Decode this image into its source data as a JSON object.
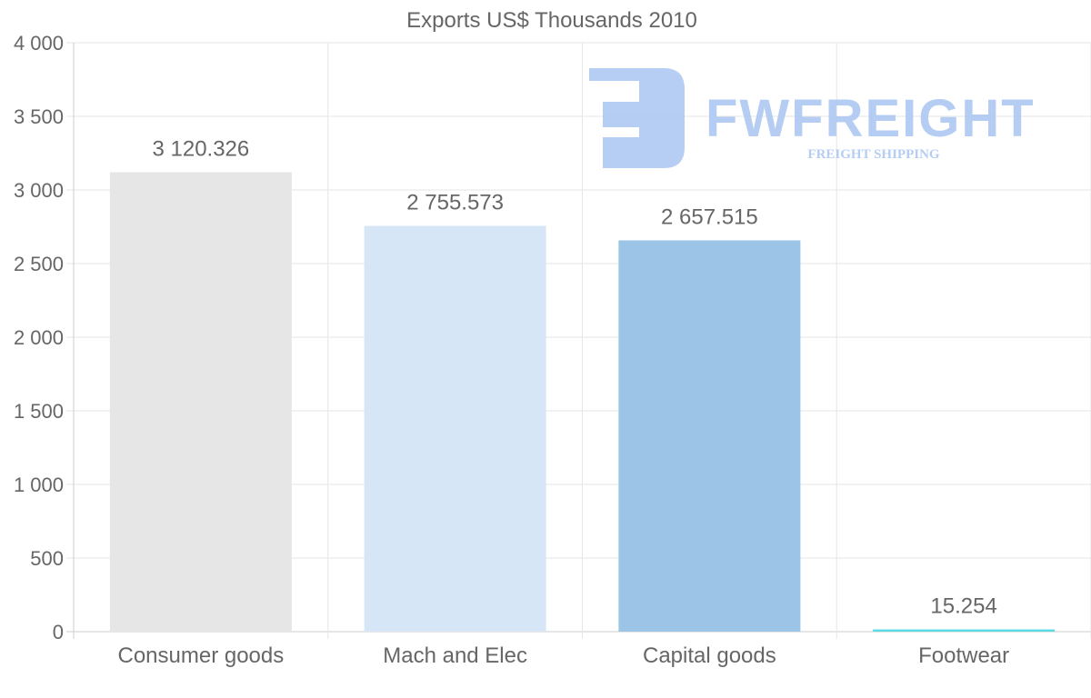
{
  "chart_data": {
    "type": "bar",
    "title": "Exports US$ Thousands 2010",
    "xlabel": "",
    "ylabel": "",
    "categories": [
      "Consumer goods",
      "Mach and Elec",
      "Capital goods",
      "Footwear"
    ],
    "values": [
      3120.326,
      2755.573,
      2657.515,
      15.254
    ],
    "value_labels": [
      "3 120.326",
      "2 755.573",
      "2 657.515",
      "15.254"
    ],
    "colors": [
      "#e6e6e6",
      "#d6e6f7",
      "#9bc4e6",
      "#5ddce6"
    ],
    "ylim": [
      0,
      4000
    ],
    "yticks": [
      0,
      500,
      1000,
      1500,
      2000,
      2500,
      3000,
      3500,
      4000
    ],
    "ytick_labels": [
      "0",
      "500",
      "1 000",
      "1 500",
      "2 000",
      "2 500",
      "3 000",
      "3 500",
      "4 000"
    ],
    "grid": true,
    "legend": "none"
  },
  "watermark": {
    "brand": "FWFREIGHT",
    "tagline": "FREIGHT SHIPPING",
    "color": "#a9c5f2"
  }
}
